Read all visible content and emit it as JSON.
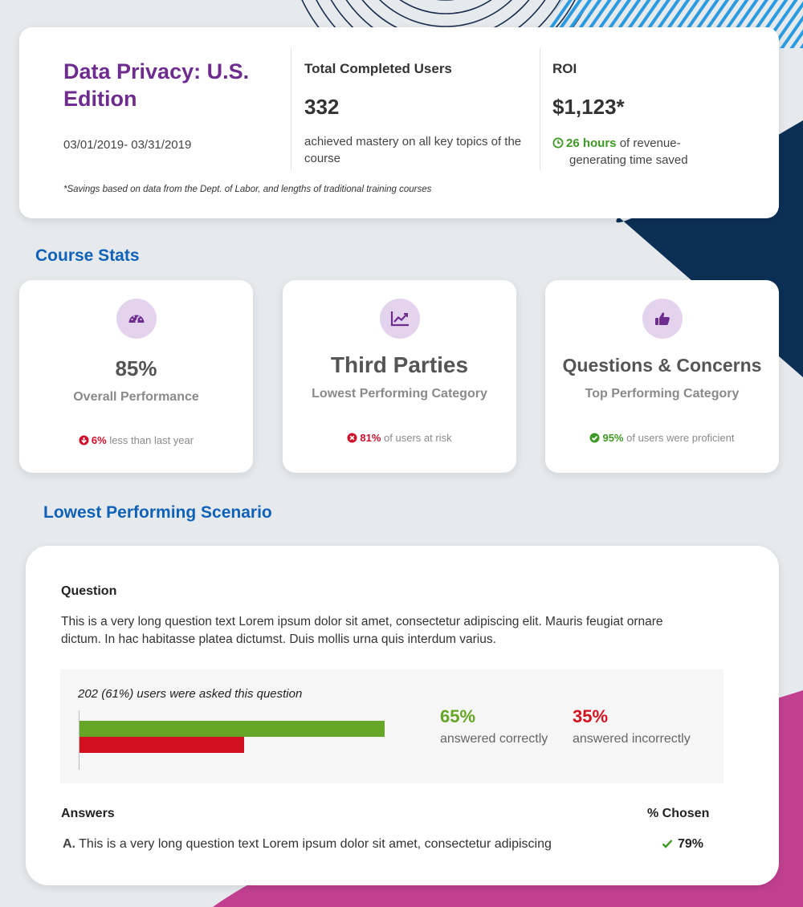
{
  "colors": {
    "background": "#e6eaed",
    "purple": "#6f2c8f",
    "blue_heading": "#0f62b8",
    "green": "#3e9a24",
    "red": "#d0102a",
    "navy_decor": "#0c2f55",
    "magenta_decor": "#c0408f"
  },
  "summary": {
    "course_title": "Data Privacy: U.S. Edition",
    "date_range": "03/01/2019- 03/31/2019",
    "completed": {
      "heading": "Total Completed Users",
      "value": "332",
      "description": "achieved mastery on all key topics of the course"
    },
    "roi": {
      "heading": "ROI",
      "value": "$1,123*",
      "icon": "clock-icon",
      "highlight": "26 hours",
      "text_line1": " of revenue-",
      "text_line2": "generating time saved"
    },
    "footnote": "*Savings based on data from the Dept. of Labor, and lengths of traditional training courses"
  },
  "course_stats": {
    "title": "Course Stats",
    "cards": [
      {
        "icon": "speedometer-icon",
        "value": "85%",
        "label": "Overall Performance",
        "foot_icon": "arrow-down-circle-icon",
        "foot_highlight": "6%",
        "foot_text": " less than last year"
      },
      {
        "icon": "line-chart-icon",
        "value": "Third Parties",
        "label": "Lowest Performing Category",
        "foot_icon": "x-circle-icon",
        "foot_highlight": "81%",
        "foot_text": " of users at risk"
      },
      {
        "icon": "thumbs-up-icon",
        "value": "Questions & Concerns",
        "label": "Top Performing Category",
        "foot_icon": "check-circle-icon",
        "foot_highlight": "95%",
        "foot_text": " of users were proficient"
      }
    ]
  },
  "scenario": {
    "title": "Lowest Performing Scenario",
    "question_heading": "Question",
    "question_text": "This is a very long question text Lorem ipsum dolor sit amet, consectetur adipiscing elit. Mauris feugiat ornare dictum. In hac habitasse platea dictumst. Duis mollis urna quis interdum varius.",
    "asked_text": "202 (61%) users were asked this question",
    "correct": {
      "value": "65%",
      "fraction": 0.65,
      "label": "answered correctly"
    },
    "incorrect": {
      "value": "35%",
      "fraction": 0.35,
      "label": "answered incorrectly"
    },
    "answers_heading": "Answers",
    "chosen_heading": "% Chosen",
    "answers": [
      {
        "letter": "A.",
        "text": "This is a very long question text Lorem ipsum dolor sit amet, consectetur adipiscing",
        "icon": "check-icon",
        "pct": "79%"
      }
    ]
  }
}
